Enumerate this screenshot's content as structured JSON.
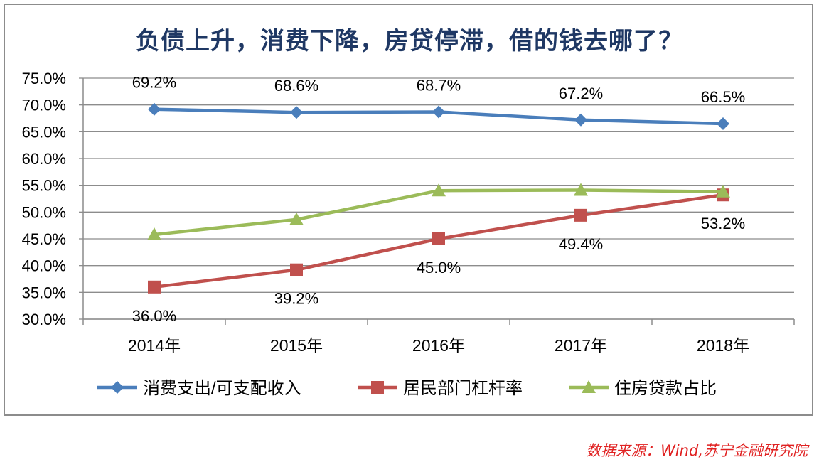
{
  "chart_data": {
    "type": "line",
    "title": "负债上升，消费下降，房贷停滞，借的钱去哪了？",
    "categories": [
      "2014年",
      "2015年",
      "2016年",
      "2017年",
      "2018年"
    ],
    "ylim": [
      30.0,
      75.0
    ],
    "yticks": [
      "30.0%",
      "35.0%",
      "40.0%",
      "45.0%",
      "50.0%",
      "55.0%",
      "60.0%",
      "65.0%",
      "70.0%",
      "75.0%"
    ],
    "grid": true,
    "legend_position": "bottom",
    "series": [
      {
        "name": "消费支出/可支配收入",
        "values": [
          69.2,
          68.6,
          68.7,
          67.2,
          66.5
        ],
        "labels": [
          "69.2%",
          "68.6%",
          "68.7%",
          "67.2%",
          "66.5%"
        ],
        "color": "#4a7ebb",
        "marker": "diamond"
      },
      {
        "name": "居民部门杠杆率",
        "values": [
          36.0,
          39.2,
          45.0,
          49.4,
          53.2
        ],
        "labels": [
          "36.0%",
          "39.2%",
          "45.0%",
          "49.4%",
          "53.2%"
        ],
        "color": "#c0504d",
        "marker": "square"
      },
      {
        "name": "住房贷款占比",
        "values": [
          45.8,
          48.6,
          54.0,
          54.1,
          53.8
        ],
        "color": "#9bbb59",
        "marker": "triangle"
      }
    ]
  },
  "source": "数据来源：Wind,苏宁金融研究院"
}
